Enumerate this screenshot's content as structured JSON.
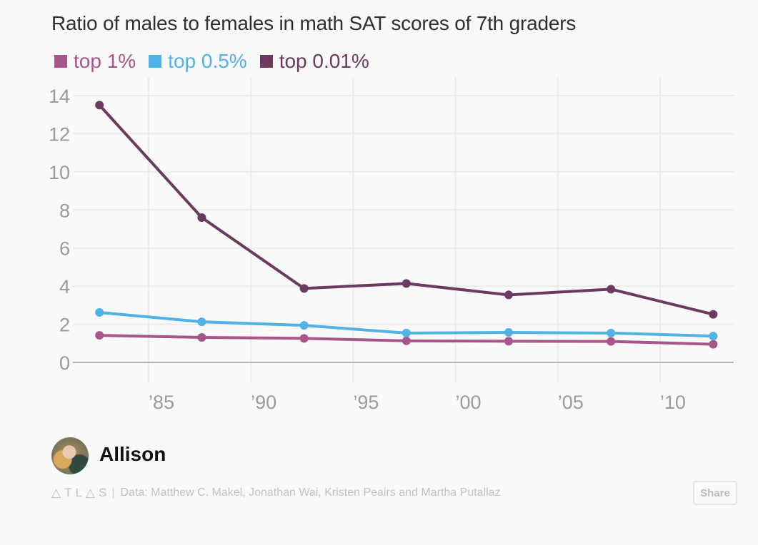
{
  "chart_data": {
    "type": "line",
    "title": "Ratio of males to females in math SAT scores of 7th graders",
    "xlabel": "",
    "ylabel": "",
    "x": [
      1982.6,
      1987.6,
      1992.6,
      1997.6,
      2002.6,
      2007.6,
      2012.6
    ],
    "xlim": [
      1981.3,
      2013.6
    ],
    "ylim": [
      0,
      14
    ],
    "x_ticks": [
      1985,
      1990,
      1995,
      2000,
      2005,
      2010
    ],
    "x_tick_labels": [
      "’85",
      "’90",
      "’95",
      "’00",
      "’05",
      "’10"
    ],
    "y_ticks": [
      0,
      2,
      4,
      6,
      8,
      10,
      12,
      14
    ],
    "y_tick_labels": [
      "0",
      "2",
      "4",
      "6",
      "8",
      "10",
      "12",
      "14"
    ],
    "grid": true,
    "legend_position": "top-left",
    "series": [
      {
        "name": "top 1%",
        "color": "#a8568a",
        "values": [
          1.42,
          1.31,
          1.26,
          1.13,
          1.11,
          1.1,
          0.95
        ]
      },
      {
        "name": "top 0.5%",
        "color": "#51b2e5",
        "values": [
          2.62,
          2.13,
          1.94,
          1.54,
          1.57,
          1.54,
          1.38
        ]
      },
      {
        "name": "top 0.01%",
        "color": "#6b3a5e",
        "values": [
          13.5,
          7.6,
          3.88,
          4.14,
          3.54,
          3.84,
          2.52
        ]
      }
    ]
  },
  "author": {
    "name": "Allison"
  },
  "footer": {
    "logo": "△TL△S",
    "separator": "|",
    "source": "Data: Matthew C. Makel, Jonathan Wai, Kristen Peairs and Martha Putallaz",
    "share_label": "Share"
  }
}
